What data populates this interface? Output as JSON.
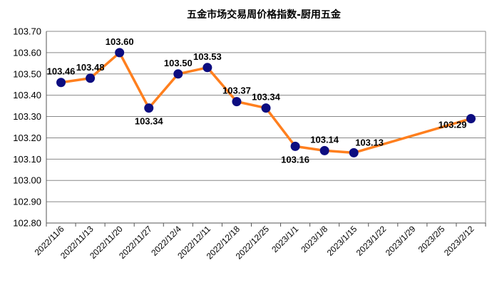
{
  "chart_data": {
    "type": "line",
    "title": "五金市场交易周价格指数-厨用五金",
    "xlabel": "",
    "ylabel": "",
    "ylim": [
      102.8,
      103.7
    ],
    "y_tick_step": 0.1,
    "y_tick_decimals": 2,
    "grid": true,
    "categories": [
      "2022/11/6",
      "2022/11/13",
      "2022/11/20",
      "2022/11/27",
      "2022/12/4",
      "2022/12/11",
      "2022/12/18",
      "2022/12/25",
      "2023/1/1",
      "2023/1/8",
      "2023/1/15",
      "2023/1/22",
      "2023/1/29",
      "2023/2/5",
      "2023/2/12"
    ],
    "series": [
      {
        "name": "",
        "values": [
          103.46,
          103.48,
          103.6,
          103.34,
          103.5,
          103.53,
          103.37,
          103.34,
          103.16,
          103.14,
          103.13,
          null,
          null,
          null,
          103.29
        ],
        "labels": [
          "103.46",
          "103.48",
          "103.60",
          "103.34",
          "103.50",
          "103.53",
          "103.37",
          "103.34",
          "103.16",
          "103.14",
          "103.13",
          "",
          "",
          "",
          "103.29"
        ],
        "label_positions": [
          "above",
          "above",
          "above",
          "below",
          "above",
          "above",
          "above",
          "above",
          "below",
          "above",
          "right",
          "",
          "",
          "",
          "left"
        ]
      }
    ],
    "colors": {
      "line": "#FF7F1E",
      "marker": "#0D0D80",
      "grid": "#888888",
      "axis": "#555555"
    }
  }
}
